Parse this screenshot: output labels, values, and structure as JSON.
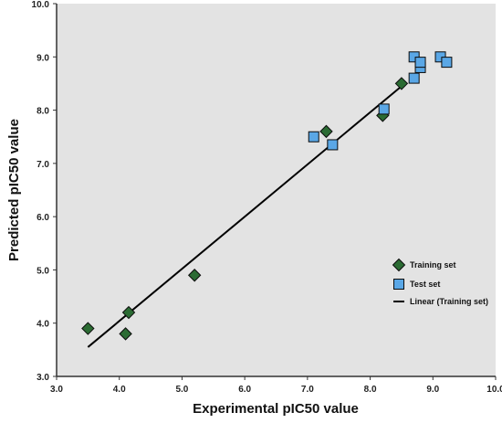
{
  "chart_data": {
    "type": "scatter",
    "xlabel": "Experimental pIC50 value",
    "ylabel": "Predicted pIC50 value",
    "xlim": [
      3.0,
      10.0
    ],
    "ylim": [
      3.0,
      10.0
    ],
    "xticks": [
      "3.0",
      "4.0",
      "5.0",
      "6.0",
      "7.0",
      "8.0",
      "9.0",
      "10.0"
    ],
    "yticks": [
      "3.0",
      "4.0",
      "5.0",
      "6.0",
      "7.0",
      "8.0",
      "9.0",
      "10.0"
    ],
    "grid": false,
    "background": "#e3e3e3",
    "legend_position": "right",
    "series": [
      {
        "name": "Training set",
        "marker": "diamond",
        "color": "#2b6b33",
        "points": [
          [
            3.5,
            3.9
          ],
          [
            4.1,
            3.8
          ],
          [
            4.15,
            4.2
          ],
          [
            5.2,
            4.9
          ],
          [
            7.3,
            7.6
          ],
          [
            8.2,
            7.9
          ],
          [
            8.5,
            8.5
          ]
        ]
      },
      {
        "name": "Test set",
        "marker": "square",
        "color": "#5aa7e6",
        "points": [
          [
            7.1,
            7.5
          ],
          [
            7.4,
            7.35
          ],
          [
            8.22,
            8.02
          ],
          [
            8.7,
            9.0
          ],
          [
            8.7,
            8.6
          ],
          [
            8.8,
            8.8
          ],
          [
            8.8,
            8.9
          ],
          [
            9.12,
            9.0
          ],
          [
            9.22,
            8.9
          ]
        ]
      },
      {
        "name": "Linear (Training set)",
        "type": "line",
        "color": "#000000",
        "points": [
          [
            3.5,
            3.55
          ],
          [
            8.5,
            8.45
          ]
        ]
      }
    ]
  }
}
